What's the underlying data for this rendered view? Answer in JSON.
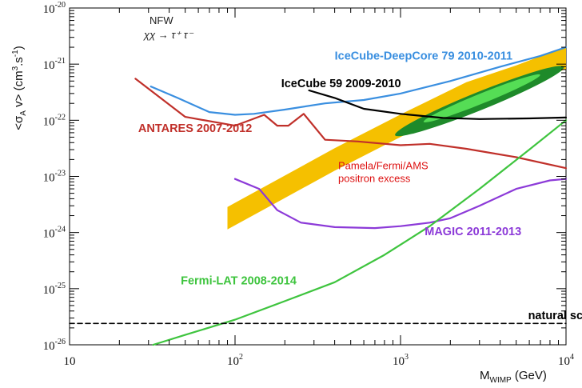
{
  "chart_data": {
    "type": "line",
    "title": "",
    "xlabel_main": "M",
    "xlabel_sub": "WIMP",
    "xlabel_unit": " (GeV)",
    "ylabel_text": "<σ",
    "ylabel_sub": "A",
    "ylabel_rest": " v> (cm",
    "ylabel_sup": "3",
    "ylabel_end": ".s",
    "ylabel_sup2": "-1",
    "ylabel_close": ")",
    "xscale": "log",
    "yscale": "log",
    "xlim": [
      10,
      10000
    ],
    "ylim": [
      1e-26,
      1e-20
    ],
    "x_ticks": [
      {
        "value": 10,
        "label": "10",
        "sup": ""
      },
      {
        "value": 100,
        "label": "10",
        "sup": "2"
      },
      {
        "value": 1000,
        "label": "10",
        "sup": "3"
      },
      {
        "value": 10000,
        "label": "10",
        "sup": "4"
      }
    ],
    "y_ticks": [
      {
        "value": 1e-26,
        "label": "10",
        "sup": "-26"
      },
      {
        "value": 1e-25,
        "label": "10",
        "sup": "-25"
      },
      {
        "value": 1e-24,
        "label": "10",
        "sup": "-24"
      },
      {
        "value": 1e-23,
        "label": "10",
        "sup": "-23"
      },
      {
        "value": 1e-22,
        "label": "10",
        "sup": "-22"
      },
      {
        "value": 1e-21,
        "label": "10",
        "sup": "-21"
      },
      {
        "value": 1e-20,
        "label": "10",
        "sup": "-20"
      }
    ],
    "model_line1": "NFW",
    "model_line2": "χχ → τ⁺ τ⁻",
    "series": [
      {
        "name": "IceCube-DeepCore 79 2010-2011",
        "color": "#3a8fe0",
        "label_pos": [
          400,
          1.2e-21
        ],
        "label_color": "#3a8fe0",
        "points": [
          [
            31,
            4e-22
          ],
          [
            45,
            2.5e-22
          ],
          [
            70,
            1.4e-22
          ],
          [
            100,
            1.25e-22
          ],
          [
            130,
            1.3e-22
          ],
          [
            200,
            1.55e-22
          ],
          [
            350,
            2e-22
          ],
          [
            600,
            2.3e-22
          ],
          [
            1000,
            3e-22
          ],
          [
            2000,
            5e-22
          ],
          [
            4000,
            9e-22
          ],
          [
            7000,
            1.4e-21
          ],
          [
            10000,
            2e-21
          ]
        ]
      },
      {
        "name": "IceCube 59 2009-2010",
        "color": "#000000",
        "label_pos": [
          190,
          3.9e-22
        ],
        "label_color": "#000000",
        "points": [
          [
            280,
            3.4e-22
          ],
          [
            400,
            2.5e-22
          ],
          [
            600,
            1.6e-22
          ],
          [
            1000,
            1.3e-22
          ],
          [
            1800,
            1.1e-22
          ],
          [
            3000,
            1.05e-22
          ],
          [
            6000,
            1.08e-22
          ],
          [
            10000,
            1.12e-22
          ]
        ]
      },
      {
        "name": "ANTARES 2007-2012",
        "color": "#c0302a",
        "label_pos": [
          26,
          6.2e-23
        ],
        "label_color": "#c0302a",
        "points": [
          [
            25,
            5.5e-22
          ],
          [
            50,
            1.15e-22
          ],
          [
            100,
            8e-23
          ],
          [
            150,
            1.25e-22
          ],
          [
            180,
            8e-23
          ],
          [
            210,
            8e-23
          ],
          [
            260,
            1.3e-22
          ],
          [
            350,
            4.5e-23
          ],
          [
            550,
            4.2e-23
          ],
          [
            1000,
            3.6e-23
          ],
          [
            1500,
            3.8e-23
          ],
          [
            2500,
            3.1e-23
          ],
          [
            5000,
            2.2e-23
          ],
          [
            10000,
            1.4e-23
          ]
        ]
      },
      {
        "name": "MAGIC 2011-2013",
        "color": "#8c3ad8",
        "label_pos": [
          1400,
          8.9e-25
        ],
        "label_color": "#8c3ad8",
        "points": [
          [
            100,
            9e-24
          ],
          [
            140,
            6e-24
          ],
          [
            180,
            2.5e-24
          ],
          [
            250,
            1.5e-24
          ],
          [
            400,
            1.25e-24
          ],
          [
            700,
            1.2e-24
          ],
          [
            1000,
            1.3e-24
          ],
          [
            1500,
            1.5e-24
          ],
          [
            2000,
            1.8e-24
          ],
          [
            3000,
            3e-24
          ],
          [
            5000,
            6e-24
          ],
          [
            8000,
            8.5e-24
          ],
          [
            10000,
            9e-24
          ]
        ]
      },
      {
        "name": "Fermi-LAT 2008-2014",
        "color": "#3ec43e",
        "label_pos": [
          47,
          1.2e-25
        ],
        "label_color": "#3ec43e",
        "points": [
          [
            32,
            1e-26
          ],
          [
            50,
            1.5e-26
          ],
          [
            100,
            2.8e-26
          ],
          [
            200,
            6e-26
          ],
          [
            400,
            1.3e-25
          ],
          [
            800,
            4e-25
          ],
          [
            1500,
            1.3e-24
          ],
          [
            3000,
            6e-24
          ],
          [
            6000,
            3e-23
          ],
          [
            10000,
            1e-22
          ]
        ]
      },
      {
        "name": "natural scale",
        "color": "#000000",
        "dashed": true,
        "label_pos": [
          5900,
          2.85e-26
        ],
        "label_color": "#000000",
        "points": [
          [
            10,
            2.4e-26
          ],
          [
            10000,
            2.4e-26
          ]
        ]
      }
    ],
    "annotation_region": {
      "name": "Pamela/Fermi/AMS positron excess",
      "label_line1": "Pamela/Fermi/AMS",
      "label_line2": "positron excess",
      "label_color": "#dd1111",
      "label_pos": [
        420,
        1.35e-23
      ],
      "band_color": "#f5c000",
      "band_center": [
        [
          90,
          1.8e-24
        ],
        [
          400,
          2e-23
        ],
        [
          1000,
          8e-23
        ],
        [
          2500,
          3e-22
        ],
        [
          5000,
          6e-22
        ],
        [
          10000,
          1.3e-21
        ]
      ],
      "band_half_width_dex": 0.2,
      "contour_outer_color": "#1e8a2a",
      "contour_inner_color": "#55dd55",
      "contour_center": [
        3000,
        2.2e-22
      ],
      "contour_outer_span_dex": [
        0.55,
        0.16
      ],
      "contour_inner_span_dex": [
        0.38,
        0.09
      ],
      "contour_tilt_deg": -22
    }
  }
}
